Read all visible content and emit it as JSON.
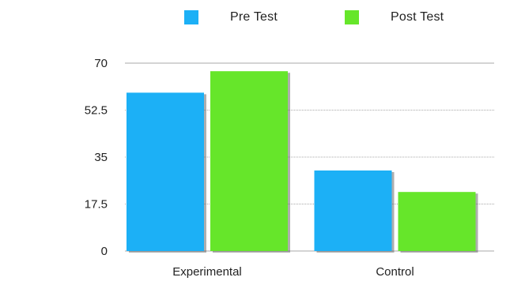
{
  "chart_data": {
    "type": "bar",
    "categories": [
      "Experimental",
      "Control"
    ],
    "series": [
      {
        "name": "Pre Test",
        "values": [
          59,
          30
        ],
        "color": "#1cb0f6"
      },
      {
        "name": "Post Test",
        "values": [
          67,
          22
        ],
        "color": "#66e62a"
      }
    ],
    "title": "",
    "xlabel": "",
    "ylabel": "",
    "ylim": [
      0,
      70
    ],
    "yticks": [
      0,
      17.5,
      35,
      52.5,
      70
    ],
    "ytick_labels": [
      "0",
      "17.5",
      "35",
      "52.5",
      "70"
    ],
    "grid": true,
    "legend_position": "top"
  }
}
